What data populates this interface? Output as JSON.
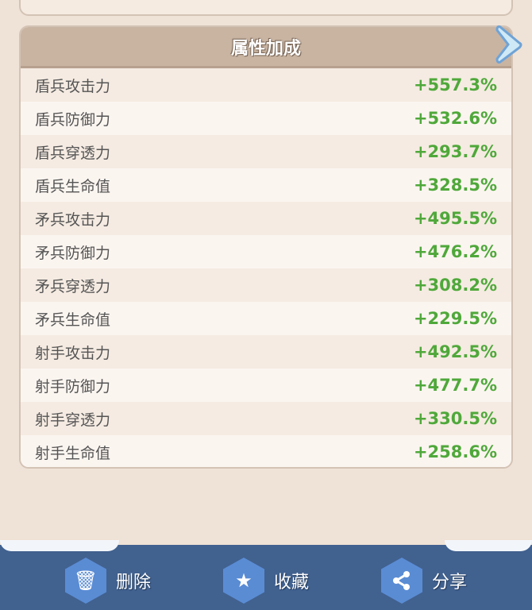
{
  "panel": {
    "title": "属性加成",
    "rows": [
      {
        "label": "盾兵攻击力",
        "value": "+557.3%"
      },
      {
        "label": "盾兵防御力",
        "value": "+532.6%"
      },
      {
        "label": "盾兵穿透力",
        "value": "+293.7%"
      },
      {
        "label": "盾兵生命值",
        "value": "+328.5%"
      },
      {
        "label": "矛兵攻击力",
        "value": "+495.5%"
      },
      {
        "label": "矛兵防御力",
        "value": "+476.2%"
      },
      {
        "label": "矛兵穿透力",
        "value": "+308.2%"
      },
      {
        "label": "矛兵生命值",
        "value": "+229.5%"
      },
      {
        "label": "射手攻击力",
        "value": "+492.5%"
      },
      {
        "label": "射手防御力",
        "value": "+477.7%"
      },
      {
        "label": "射手穿透力",
        "value": "+330.5%"
      },
      {
        "label": "射手生命值",
        "value": "+258.6%"
      }
    ]
  },
  "toolbar": {
    "delete": "删除",
    "favorite": "收藏",
    "share": "分享"
  },
  "colors": {
    "value_green": "#4fa83a",
    "bar_blue": "#41618f",
    "header": "#c9b4a2"
  }
}
